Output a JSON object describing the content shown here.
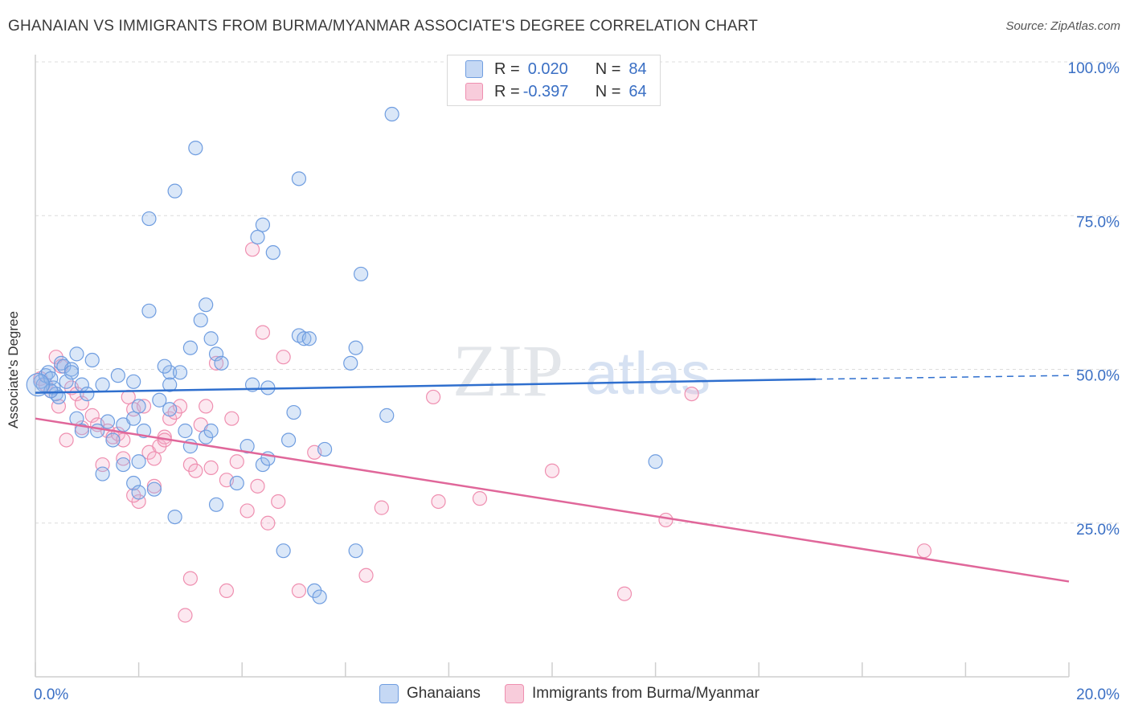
{
  "title": "GHANAIAN VS IMMIGRANTS FROM BURMA/MYANMAR ASSOCIATE'S DEGREE CORRELATION CHART",
  "source": "Source: ZipAtlas.com",
  "watermark": {
    "zip": "ZIP",
    "atlas": "atlas"
  },
  "legend_top": [
    {
      "r_label": "R =",
      "r_value": "0.020",
      "n_label": "N =",
      "n_value": "84",
      "color": "#6f9de0"
    },
    {
      "r_label": "R =",
      "r_value": "-0.397",
      "n_label": "N =",
      "n_value": "64",
      "color": "#ef8fb0"
    }
  ],
  "legend_bottom": [
    {
      "label": "Ghanaians",
      "color": "#6f9de0"
    },
    {
      "label": "Immigrants from Burma/Myanmar",
      "color": "#ef8fb0"
    }
  ],
  "chart_data": {
    "type": "scatter",
    "title": "GHANAIAN VS IMMIGRANTS FROM BURMA/MYANMAR ASSOCIATE'S DEGREE CORRELATION CHART",
    "xlabel": "",
    "ylabel": "Associate's Degree",
    "xlim": [
      0,
      20
    ],
    "ylim": [
      0,
      105
    ],
    "x_tick_labels": [
      "0.0%",
      "20.0%"
    ],
    "y_ticks": [
      25,
      50,
      75,
      100
    ],
    "y_tick_labels": [
      "25.0%",
      "50.0%",
      "75.0%",
      "100.0%"
    ],
    "grid": true,
    "legend_placement": "top-center",
    "series": [
      {
        "name": "Ghanaians",
        "color": "#6f9de0",
        "trend": {
          "x0": 0,
          "y0": 46.2,
          "x1": 15.1,
          "y1": 48.4,
          "dash_x1": 20,
          "dash_y1": 49.0
        },
        "points": [
          [
            0.1,
            48.0
          ],
          [
            0.15,
            47.5
          ],
          [
            0.2,
            49.0
          ],
          [
            0.25,
            49.5
          ],
          [
            0.3,
            48.5
          ],
          [
            0.35,
            47.0
          ],
          [
            0.4,
            46.0
          ],
          [
            0.45,
            45.5
          ],
          [
            0.5,
            51.0
          ],
          [
            0.55,
            50.5
          ],
          [
            0.6,
            48.0
          ],
          [
            0.7,
            50.0
          ],
          [
            0.8,
            52.5
          ],
          [
            0.9,
            47.5
          ],
          [
            1.0,
            46.0
          ],
          [
            1.1,
            51.5
          ],
          [
            0.8,
            42.0
          ],
          [
            0.9,
            40.0
          ],
          [
            1.2,
            40.0
          ],
          [
            1.4,
            41.5
          ],
          [
            1.5,
            38.5
          ],
          [
            1.7,
            41.0
          ],
          [
            1.9,
            42.0
          ],
          [
            2.1,
            40.0
          ],
          [
            1.6,
            49.0
          ],
          [
            1.9,
            48.0
          ],
          [
            2.4,
            45.0
          ],
          [
            2.6,
            43.5
          ],
          [
            2.6,
            49.5
          ],
          [
            2.8,
            49.5
          ],
          [
            2.5,
            50.5
          ],
          [
            2.9,
            40.0
          ],
          [
            1.7,
            34.5
          ],
          [
            1.3,
            33.0
          ],
          [
            2.0,
            35.0
          ],
          [
            1.9,
            31.5
          ],
          [
            2.3,
            30.5
          ],
          [
            2.0,
            30.0
          ],
          [
            2.7,
            26.0
          ],
          [
            3.0,
            37.5
          ],
          [
            3.3,
            39.0
          ],
          [
            3.4,
            40.0
          ],
          [
            3.9,
            31.5
          ],
          [
            3.5,
            28.0
          ],
          [
            4.1,
            37.5
          ],
          [
            4.4,
            34.5
          ],
          [
            4.5,
            35.5
          ],
          [
            4.9,
            38.5
          ],
          [
            3.0,
            53.5
          ],
          [
            3.2,
            58.0
          ],
          [
            3.3,
            60.5
          ],
          [
            3.4,
            55.0
          ],
          [
            3.5,
            52.5
          ],
          [
            3.6,
            51.0
          ],
          [
            4.2,
            47.5
          ],
          [
            4.5,
            47.0
          ],
          [
            5.0,
            43.0
          ],
          [
            5.1,
            55.5
          ],
          [
            5.2,
            55.0
          ],
          [
            5.3,
            55.0
          ],
          [
            5.6,
            37.0
          ],
          [
            6.1,
            51.0
          ],
          [
            6.2,
            53.5
          ],
          [
            6.8,
            42.5
          ],
          [
            1.3,
            47.5
          ],
          [
            2.6,
            47.5
          ],
          [
            0.7,
            49.5
          ],
          [
            0.3,
            46.5
          ],
          [
            2.2,
            59.5
          ],
          [
            2.2,
            74.5
          ],
          [
            2.7,
            79.0
          ],
          [
            3.1,
            86.0
          ],
          [
            4.3,
            71.5
          ],
          [
            4.4,
            73.5
          ],
          [
            4.6,
            69.0
          ],
          [
            5.1,
            81.0
          ],
          [
            6.3,
            65.5
          ],
          [
            6.9,
            91.5
          ],
          [
            4.8,
            20.5
          ],
          [
            6.2,
            20.5
          ],
          [
            5.4,
            14.0
          ],
          [
            5.5,
            13.0
          ],
          [
            12.0,
            35.0
          ],
          [
            2.0,
            44.0
          ]
        ]
      },
      {
        "name": "Immigrants from Burma/Myanmar",
        "color": "#ef8fb0",
        "trend": {
          "x0": 0,
          "y0": 42.0,
          "x1": 20,
          "y1": 15.5
        },
        "points": [
          [
            0.1,
            48.5
          ],
          [
            0.2,
            47.5
          ],
          [
            0.3,
            46.5
          ],
          [
            0.4,
            52.0
          ],
          [
            0.5,
            50.5
          ],
          [
            0.45,
            44.0
          ],
          [
            0.7,
            47.0
          ],
          [
            0.8,
            46.0
          ],
          [
            0.6,
            38.5
          ],
          [
            0.9,
            40.5
          ],
          [
            1.1,
            42.5
          ],
          [
            1.2,
            41.0
          ],
          [
            1.4,
            40.0
          ],
          [
            1.5,
            39.0
          ],
          [
            1.6,
            39.5
          ],
          [
            1.3,
            34.5
          ],
          [
            1.7,
            35.5
          ],
          [
            1.8,
            45.5
          ],
          [
            1.9,
            43.5
          ],
          [
            2.1,
            44.0
          ],
          [
            2.2,
            36.5
          ],
          [
            2.4,
            37.5
          ],
          [
            2.5,
            39.0
          ],
          [
            2.6,
            42.0
          ],
          [
            2.7,
            43.0
          ],
          [
            2.8,
            44.0
          ],
          [
            3.0,
            34.5
          ],
          [
            3.1,
            33.5
          ],
          [
            3.2,
            41.0
          ],
          [
            3.3,
            44.0
          ],
          [
            3.4,
            34.0
          ],
          [
            3.5,
            51.0
          ],
          [
            3.7,
            32.0
          ],
          [
            3.8,
            42.0
          ],
          [
            3.9,
            35.0
          ],
          [
            4.1,
            27.0
          ],
          [
            4.3,
            31.0
          ],
          [
            4.5,
            25.0
          ],
          [
            4.7,
            28.5
          ],
          [
            4.8,
            52.0
          ],
          [
            4.4,
            56.0
          ],
          [
            4.2,
            69.5
          ],
          [
            5.4,
            36.5
          ],
          [
            6.7,
            27.5
          ],
          [
            7.7,
            45.5
          ],
          [
            7.8,
            28.5
          ],
          [
            8.6,
            29.0
          ],
          [
            10.0,
            33.5
          ],
          [
            12.2,
            25.5
          ],
          [
            12.7,
            46.0
          ],
          [
            17.2,
            20.5
          ],
          [
            2.0,
            28.5
          ],
          [
            2.3,
            31.0
          ],
          [
            1.9,
            29.5
          ],
          [
            3.0,
            16.0
          ],
          [
            2.9,
            10.0
          ],
          [
            3.7,
            14.0
          ],
          [
            5.1,
            14.0
          ],
          [
            6.4,
            16.5
          ],
          [
            11.4,
            13.5
          ],
          [
            1.7,
            38.5
          ],
          [
            2.5,
            38.5
          ],
          [
            0.9,
            44.5
          ],
          [
            2.3,
            35.5
          ]
        ]
      }
    ]
  }
}
